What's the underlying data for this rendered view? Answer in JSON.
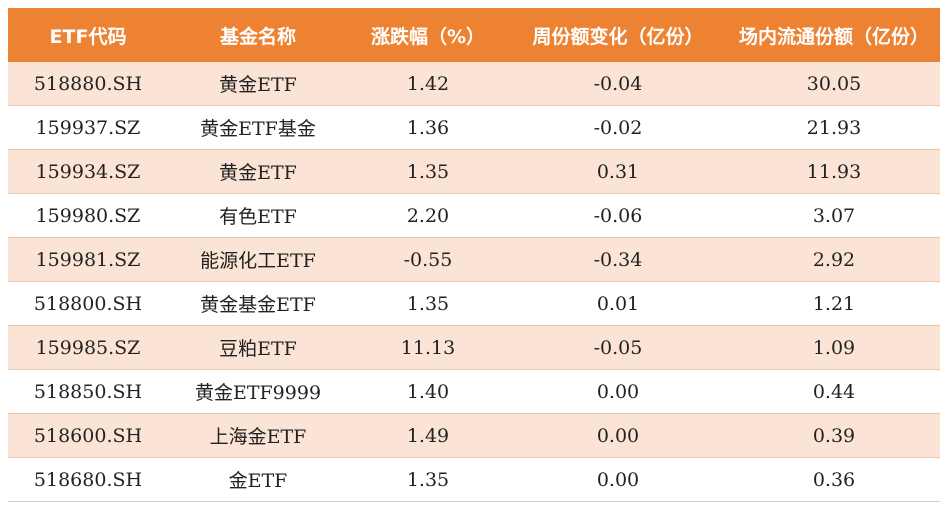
{
  "table": {
    "headers": [
      "ETF代码",
      "基金名称",
      "涨跌幅（%）",
      "周份额变化（亿份）",
      "场内流通份额（亿份）"
    ],
    "rows": [
      [
        "518880.SH",
        "黄金ETF",
        "1.42",
        "-0.04",
        "30.05"
      ],
      [
        "159937.SZ",
        "黄金ETF基金",
        "1.36",
        "-0.02",
        "21.93"
      ],
      [
        "159934.SZ",
        "黄金ETF",
        "1.35",
        "0.31",
        "11.93"
      ],
      [
        "159980.SZ",
        "有色ETF",
        "2.20",
        "-0.06",
        "3.07"
      ],
      [
        "159981.SZ",
        "能源化工ETF",
        "-0.55",
        "-0.34",
        "2.92"
      ],
      [
        "518800.SH",
        "黄金基金ETF",
        "1.35",
        "0.01",
        "1.21"
      ],
      [
        "159985.SZ",
        "豆粕ETF",
        "11.13",
        "-0.05",
        "1.09"
      ],
      [
        "518850.SH",
        "黄金ETF9999",
        "1.40",
        "0.00",
        "0.44"
      ],
      [
        "518600.SH",
        "上海金ETF",
        "1.49",
        "0.00",
        "0.39"
      ],
      [
        "518680.SH",
        "金ETF",
        "1.35",
        "0.00",
        "0.36"
      ]
    ]
  },
  "colors": {
    "header_bg": "#ee8233",
    "header_text": "#ffffff",
    "odd_row_bg": "#fbe4d5",
    "even_row_bg": "#ffffff",
    "divider": "#e6c9b0"
  }
}
